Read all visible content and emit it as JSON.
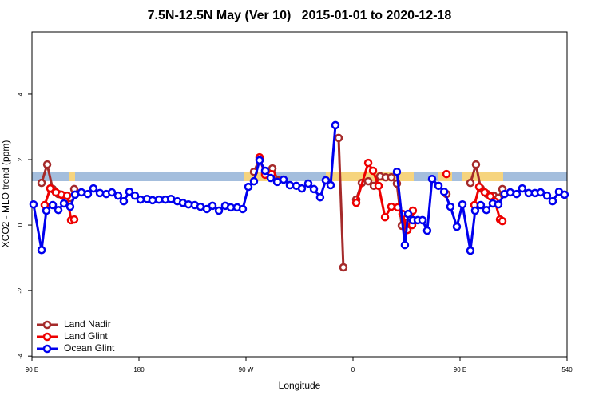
{
  "chart_data": {
    "type": "line",
    "title": "7.5N-12.5N May (Ver 10)   2015-01-01 to 2020-12-18",
    "x_label": "Longitude",
    "y_label": "XCO2 - MLO trend (ppm)",
    "xlim": [
      90,
      540
    ],
    "xticks": [
      {
        "value": 90,
        "label": "90 E"
      },
      180,
      {
        "value": 270,
        "label": "90 W"
      },
      {
        "value": 360,
        "label": "0"
      },
      {
        "value": 450,
        "label": "90 E"
      },
      540
    ],
    "ylim": [
      -4.02,
      5.9
    ],
    "yticks": [
      -4,
      -2,
      0,
      2,
      4
    ],
    "legend": "lower left",
    "series": [
      {
        "name": "Land Nadir",
        "color": "#a52a2a",
        "x": [
          98.1,
          102.8,
          107.5,
          112.2,
          117.5,
          122.2,
          125.6,
          null,
          276.7,
          281.4,
          286.1,
          292.2,
          296.9,
          null,
          347.9,
          351.9,
          null,
          362.7,
          367.4,
          372.8,
          377.5,
          382.8,
          387.5,
          392.2,
          396.9,
          401.0,
          405.0,
          null,
          438.6,
          null,
          458.7,
          463.4,
          467.4,
          472.8,
          478.2,
          482.2,
          485.6
        ],
        "values": [
          1.29,
          1.85,
          1.1,
          0.95,
          0.9,
          0.83,
          1.1,
          null,
          1.63,
          2.02,
          1.59,
          1.73,
          1.37,
          null,
          2.66,
          -1.29,
          null,
          0.78,
          1.29,
          1.34,
          1.2,
          1.49,
          1.46,
          1.46,
          1.27,
          -0.02,
          0.07,
          null,
          0.95,
          null,
          1.29,
          1.85,
          1.12,
          0.95,
          0.9,
          0.83,
          1.1
        ]
      },
      {
        "name": "Land Glint",
        "color": "#ee0000",
        "x": [
          100.7,
          105.4,
          110.1,
          114.8,
          119.6,
          122.9,
          125.6,
          null,
          281.4,
          286.1,
          291.5,
          null,
          362.7,
          372.8,
          376.8,
          381.5,
          386.9,
          392.2,
          397.6,
          401.6,
          405.7,
          409.7,
          410.3,
          null,
          438.6,
          null,
          462.1,
          466.1,
          470.8,
          475.5,
          479.5,
          483.6,
          485.6
        ],
        "values": [
          0.61,
          1.12,
          1.0,
          0.93,
          0.9,
          0.15,
          0.17,
          null,
          2.07,
          1.54,
          1.56,
          null,
          0.68,
          1.9,
          1.66,
          1.2,
          0.24,
          0.56,
          0.54,
          0.34,
          -0.15,
          0,
          0.44,
          null,
          1.56,
          null,
          0.61,
          1.17,
          1.0,
          0.88,
          0.71,
          0.17,
          0.12
        ]
      },
      {
        "name": "Ocean Glint",
        "color": "#0000ee",
        "x": [
          91.3,
          98.1,
          102.1,
          107.5,
          112.2,
          116.9,
          122.2,
          126.3,
          131.6,
          137.0,
          141.7,
          147.1,
          152.5,
          157.2,
          162.5,
          167.2,
          171.9,
          176.6,
          181.3,
          186.7,
          191.4,
          196.8,
          202.2,
          206.9,
          212.2,
          216.9,
          221.6,
          227.0,
          231.7,
          237.1,
          241.8,
          247.2,
          252.5,
          257.2,
          262.6,
          267.3,
          272.0,
          276.7,
          281.4,
          286.1,
          290.8,
          296.2,
          301.6,
          306.9,
          312.3,
          317.0,
          322.4,
          327.1,
          332.4,
          337.1,
          341.2,
          345.2,
          null,
          396.9,
          403.6,
          406.3,
          410.3,
          414.4,
          418.4,
          422.4,
          426.5,
          431.9,
          436.6,
          441.9,
          447.3,
          452.0,
          458.7,
          462.7,
          467.4,
          472.1,
          477.5,
          482.2,
          487.5,
          492.2,
          497.6,
          502.3,
          507.7,
          513.0,
          517.8,
          523.2,
          527.9,
          533.2,
          537.9
        ],
        "values": [
          0.63,
          -0.76,
          0.44,
          0.61,
          0.46,
          0.66,
          0.56,
          0.93,
          1.0,
          0.95,
          1.12,
          0.98,
          0.95,
          1.0,
          0.9,
          0.73,
          1.02,
          0.9,
          0.78,
          0.8,
          0.76,
          0.78,
          0.78,
          0.8,
          0.73,
          0.68,
          0.63,
          0.61,
          0.56,
          0.49,
          0.59,
          0.44,
          0.59,
          0.54,
          0.54,
          0.49,
          1.17,
          1.34,
          1.98,
          1.66,
          1.44,
          1.32,
          1.39,
          1.22,
          1.2,
          1.12,
          1.27,
          1.1,
          0.85,
          1.37,
          1.22,
          3.05,
          null,
          1.63,
          -0.61,
          0.34,
          0.15,
          0.15,
          0.15,
          -0.17,
          1.41,
          1.2,
          1.02,
          0.56,
          -0.05,
          0.63,
          -0.78,
          0.44,
          0.61,
          0.46,
          0.66,
          0.63,
          0.95,
          1.0,
          0.95,
          1.12,
          0.98,
          0.98,
          1.0,
          0.9,
          0.73,
          1.02,
          0.93
        ]
      }
    ]
  }
}
